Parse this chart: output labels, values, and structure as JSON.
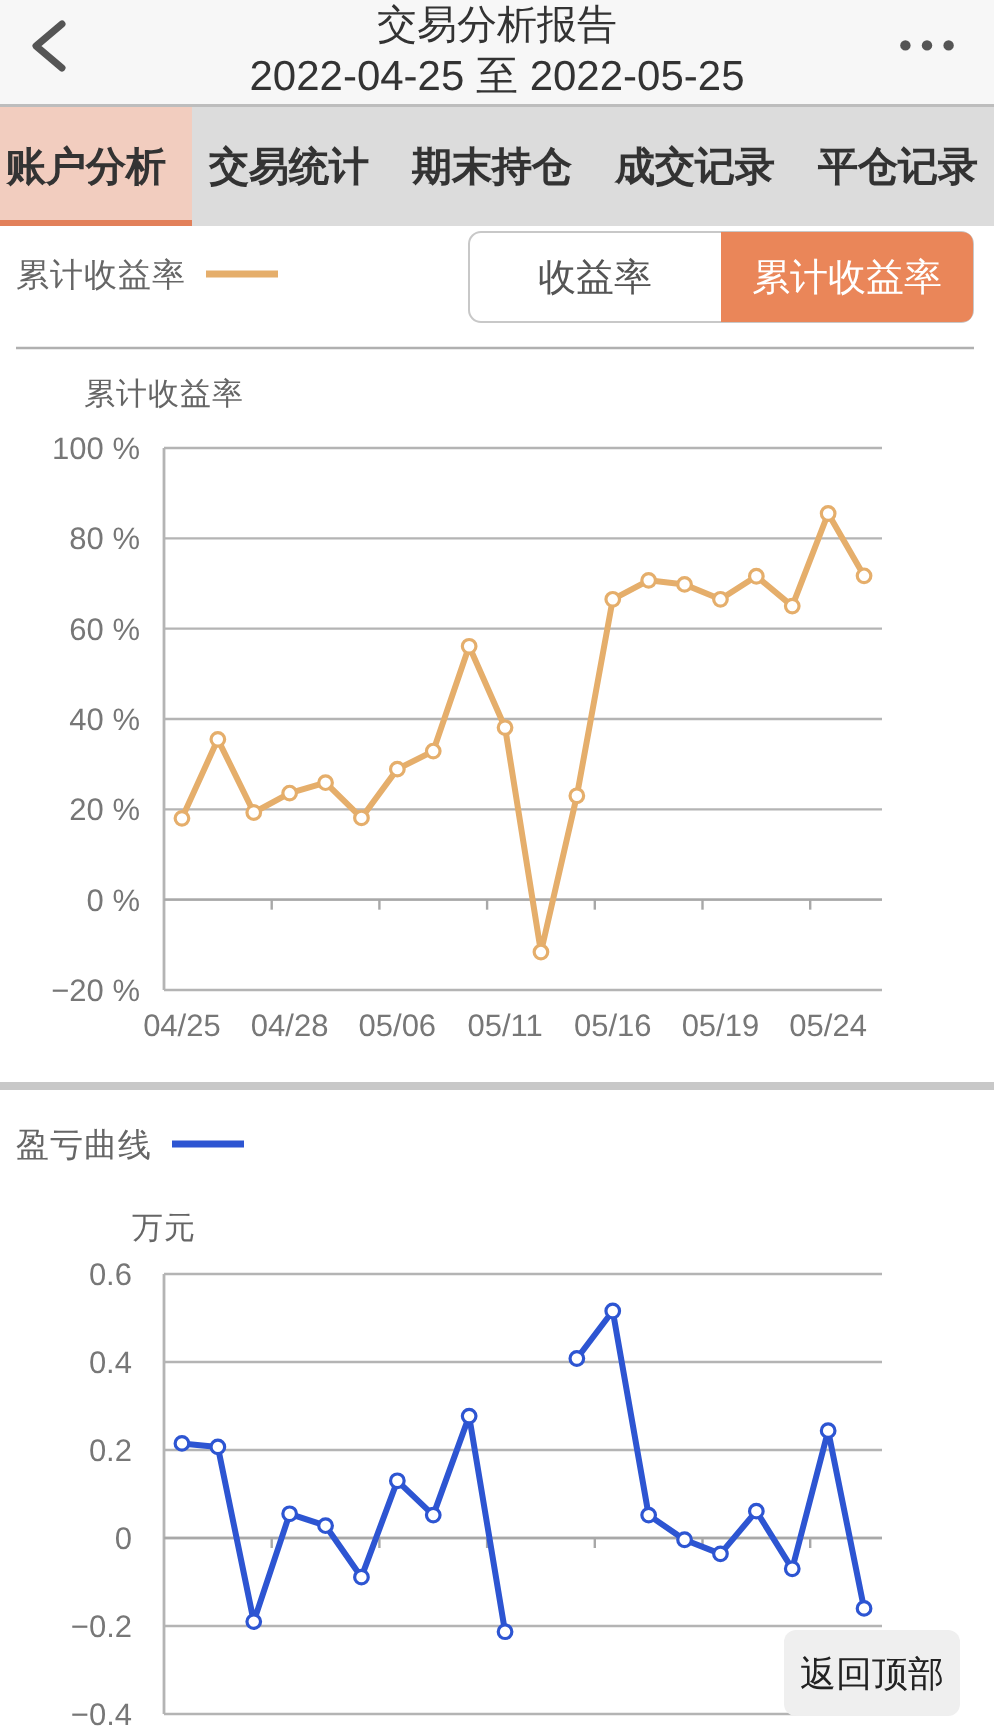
{
  "chart_data": [
    {
      "type": "other",
      "title": "交易分析报告",
      "subtitle": "2022-04-25 至 2022-05-25",
      "annotations": [
        "账户分析",
        "交易统计",
        "期末持仓",
        "成交记录",
        "平仓记录"
      ]
    },
    {
      "type": "line",
      "ylabel": "累计收益率",
      "categories": [
        "04/25",
        null,
        null,
        "04/28",
        null,
        null,
        "05/06",
        null,
        null,
        "05/11",
        null,
        null,
        "05/16",
        null,
        null,
        "05/19",
        null,
        null,
        "05/24",
        null
      ],
      "series": [
        {
          "name": "累计收益率",
          "color": "#e5ae6b",
          "values": [
            18,
            35.5,
            19.3,
            23.6,
            25.9,
            18.1,
            28.9,
            32.9,
            56.1,
            38.1,
            -11.6,
            23,
            66.5,
            70.7,
            69.8,
            66.5,
            71.6,
            65,
            85.5,
            71.7
          ]
        }
      ],
      "ylim": [
        -20,
        100
      ],
      "yticks": [
        {
          "value": -20,
          "label": "−20 %"
        },
        {
          "value": 0,
          "label": "0 %"
        },
        {
          "value": 20,
          "label": "20 %"
        },
        {
          "value": 40,
          "label": "40 %"
        },
        {
          "value": 60,
          "label": "60 %"
        },
        {
          "value": 80,
          "label": "80 %"
        },
        {
          "value": 100,
          "label": "100 %"
        }
      ],
      "grid": "y",
      "legend": "top left",
      "marker": "circle",
      "annotations": [
        "收益率",
        "累计收益率"
      ]
    },
    {
      "type": "line",
      "ylabel": "万元",
      "categories": [
        null,
        null,
        null,
        null,
        null,
        null,
        null,
        null,
        null,
        null,
        null,
        null,
        null,
        null,
        null,
        null,
        null,
        null,
        null,
        null
      ],
      "series": [
        {
          "name": "盈亏曲线",
          "color": "#2d55d2",
          "values": [
            0.215,
            0.207,
            -0.19,
            0.055,
            0.028,
            -0.089,
            0.13,
            0.052,
            0.277,
            -0.213,
            null,
            0.408,
            0.516,
            0.052,
            -0.004,
            -0.036,
            0.061,
            -0.07,
            0.244,
            -0.16
          ]
        }
      ],
      "ylim": [
        -0.4,
        0.6
      ],
      "yticks": [
        {
          "value": -0.4,
          "label": "−0.4"
        },
        {
          "value": -0.2,
          "label": "−0.2"
        },
        0,
        0.2,
        0.4,
        0.6
      ],
      "grid": "y",
      "legend": "top left",
      "marker": "circle",
      "annotations": [
        "返回顶部"
      ]
    }
  ]
}
